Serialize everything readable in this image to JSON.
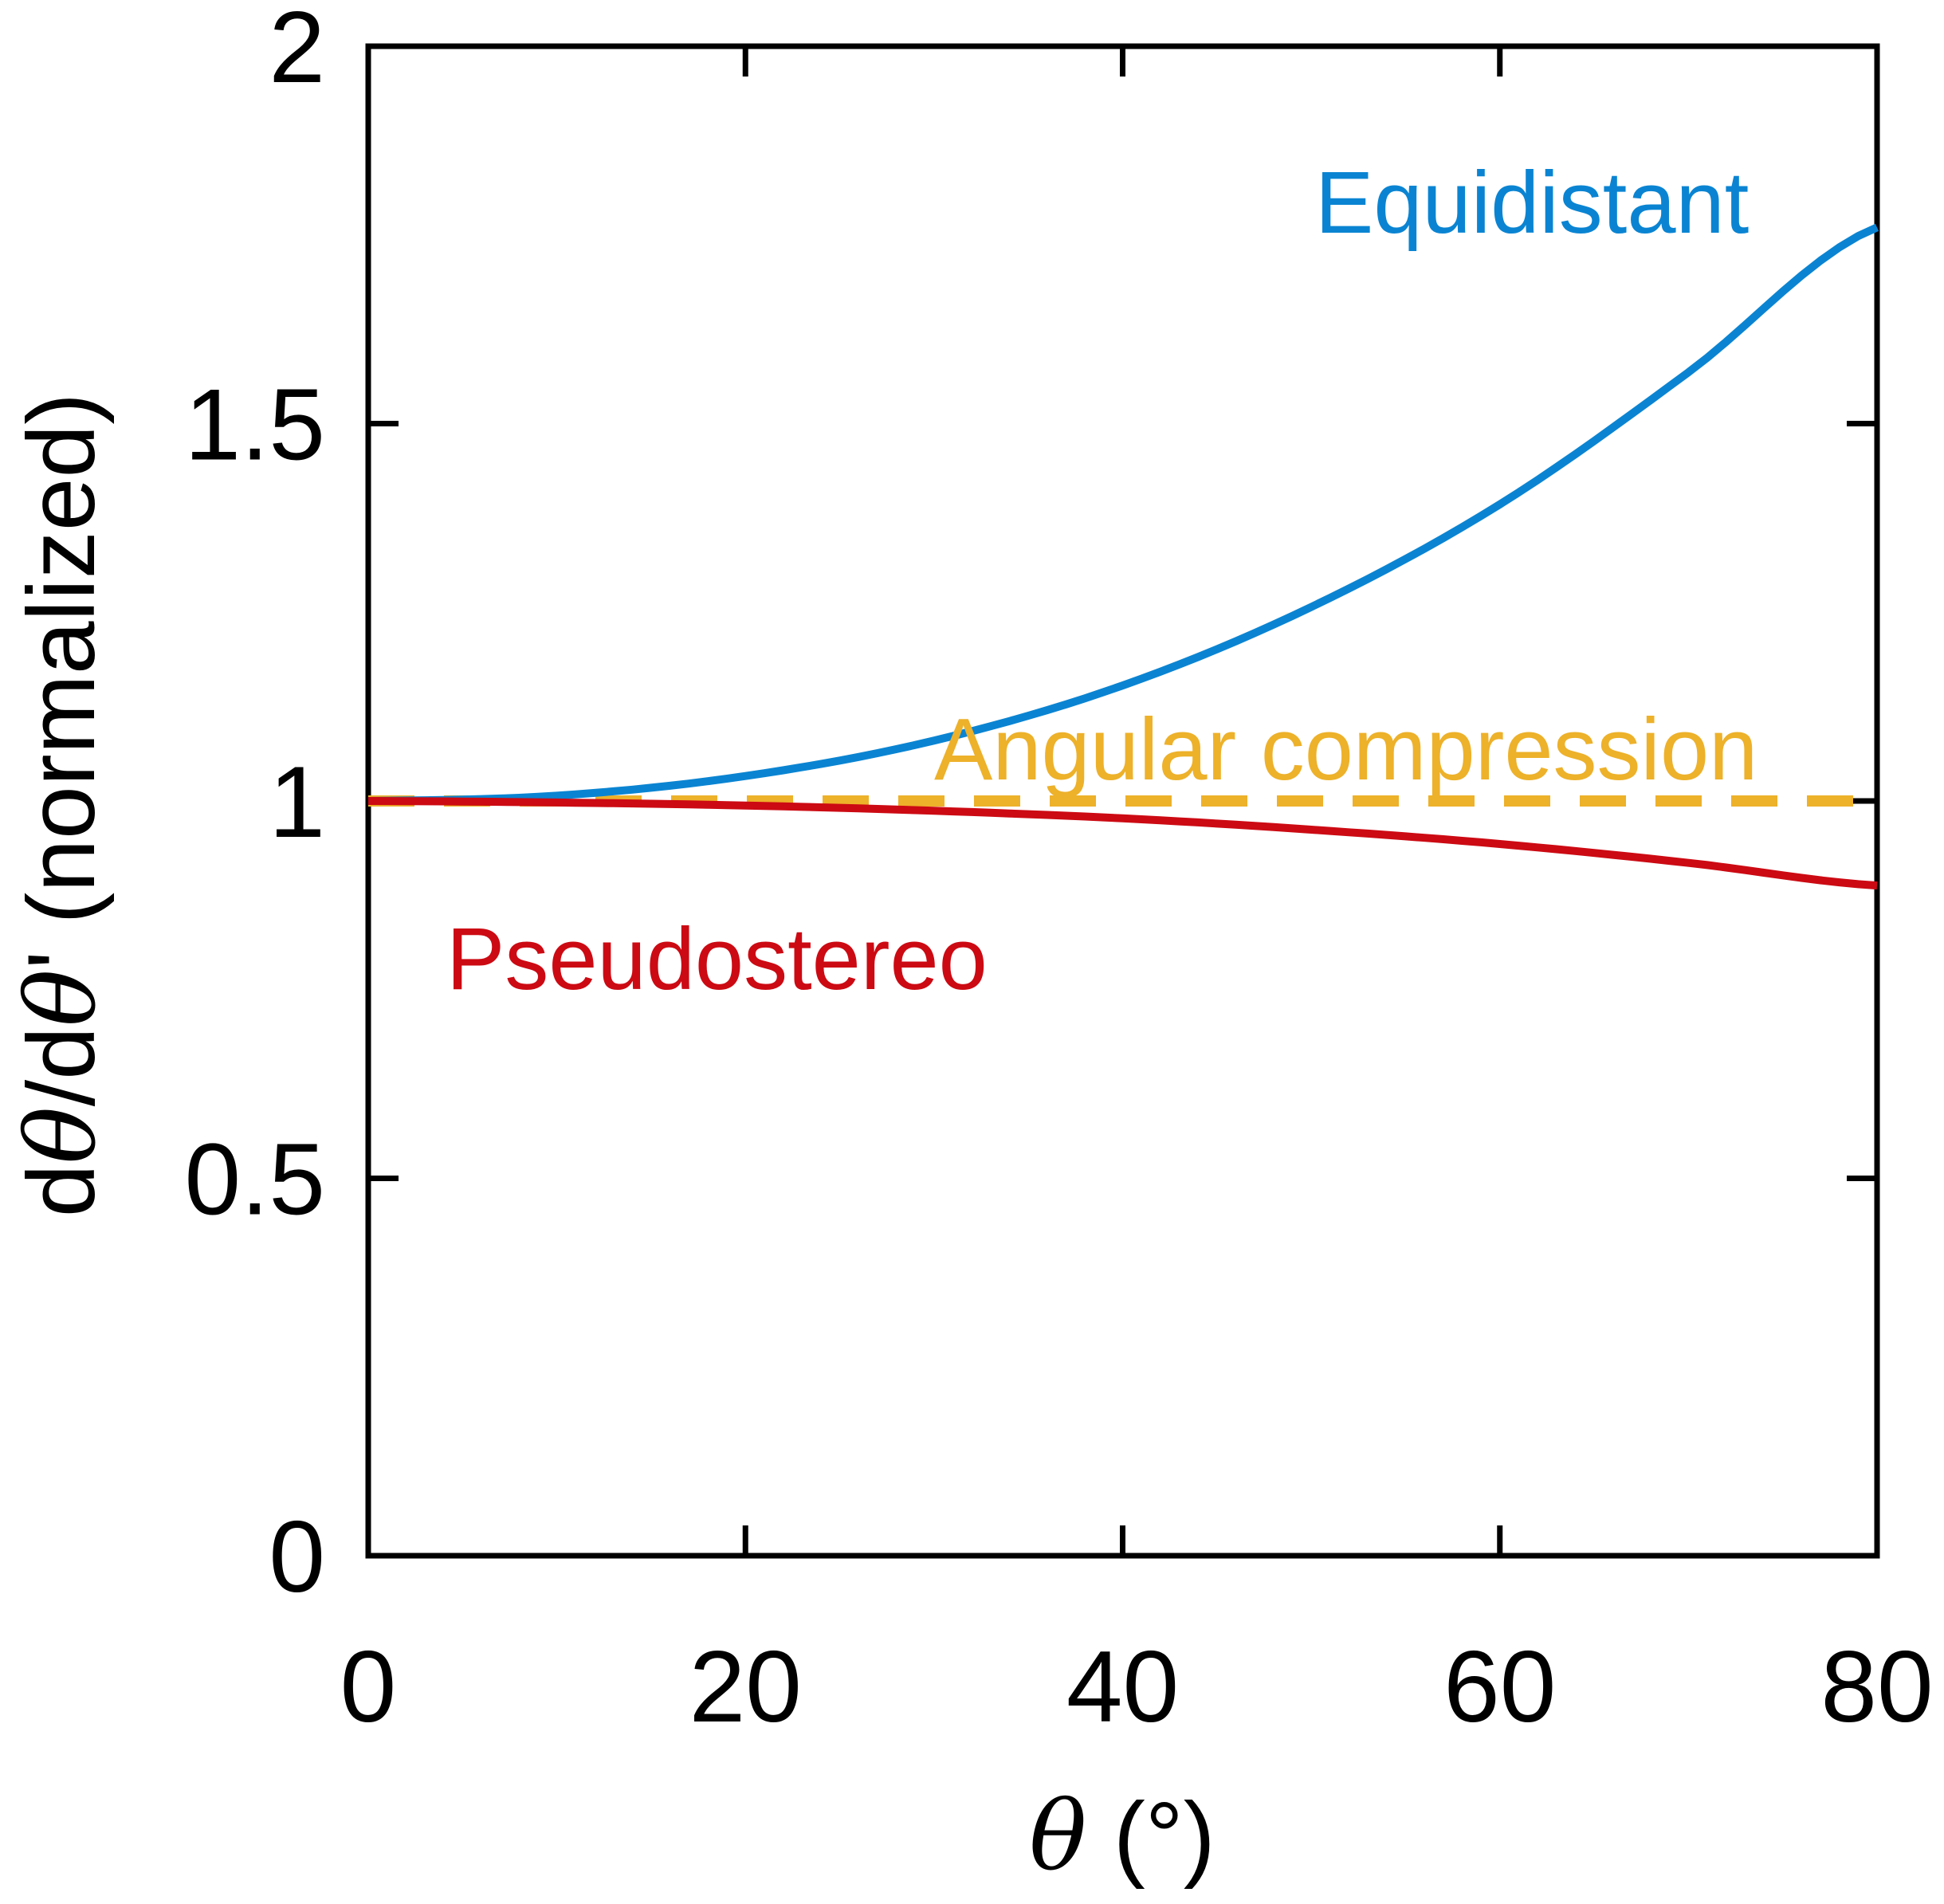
{
  "chart_data": {
    "type": "line",
    "title": "",
    "xlabel": "θ (°)",
    "xlabel_parts": {
      "symbol": "θ",
      "unit": " (°)"
    },
    "ylabel": "dθ/dθ′ (normalized)",
    "ylabel_parts": {
      "d1": "d",
      "s1": "θ",
      "mid": "/d",
      "s2": "θ",
      "tail": "' (normalized)"
    },
    "xlim": [
      0,
      80
    ],
    "ylim": [
      0,
      2
    ],
    "xticks": [
      0,
      20,
      40,
      60,
      80
    ],
    "xtick_labels": [
      "0",
      "20",
      "40",
      "60",
      "80"
    ],
    "yticks": [
      0,
      0.5,
      1,
      1.5,
      2
    ],
    "ytick_labels": [
      "0",
      "0.5",
      "1",
      "1.5",
      "2"
    ],
    "grid": false,
    "series": [
      {
        "name": "Equidistant",
        "color": "#0a84d2",
        "style": "solid",
        "x": [
          0,
          10,
          20,
          30,
          40,
          50,
          60,
          70,
          80
        ],
        "values": [
          1.0,
          1.007,
          1.033,
          1.08,
          1.153,
          1.257,
          1.393,
          1.568,
          1.76
        ]
      },
      {
        "name": "Angular compression",
        "color": "#edb12a",
        "style": "dashed",
        "x": [
          0,
          80
        ],
        "values": [
          1.0,
          1.0
        ]
      },
      {
        "name": "Pseudostereo",
        "color": "#cc0a13",
        "style": "solid",
        "x": [
          0,
          10,
          20,
          30,
          40,
          50,
          60,
          70,
          80
        ],
        "values": [
          1.0,
          0.998,
          0.994,
          0.987,
          0.977,
          0.962,
          0.943,
          0.918,
          0.888
        ]
      }
    ],
    "annotations": [
      {
        "text": "Equidistant",
        "series": "Equidistant"
      },
      {
        "text": "Angular compression",
        "series": "Angular compression"
      },
      {
        "text": "Pseudostereo",
        "series": "Pseudostereo"
      }
    ]
  }
}
